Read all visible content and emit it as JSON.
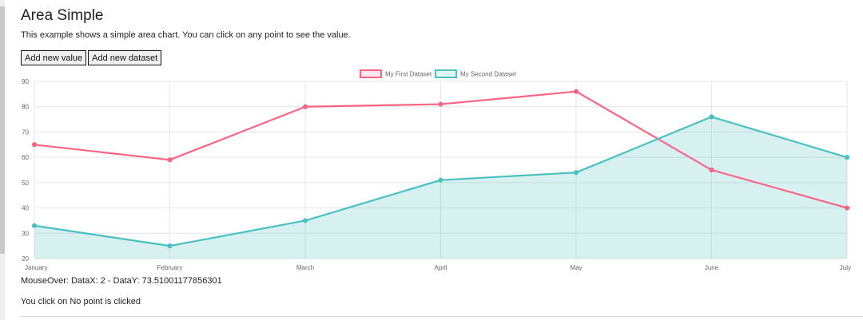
{
  "page": {
    "title": "Area Simple",
    "description": "This example shows a simple area chart. You can click on any point to see the value."
  },
  "buttons": {
    "add_value": "Add new value",
    "add_dataset": "Add new dataset"
  },
  "chart_data": {
    "type": "area",
    "categories": [
      "January",
      "February",
      "March",
      "April",
      "May",
      "June",
      "July"
    ],
    "series": [
      {
        "name": "My First Dataset",
        "values": [
          65,
          59,
          80,
          81,
          86,
          55,
          40
        ],
        "color": "#ff6384",
        "fill": false
      },
      {
        "name": "My Second Dataset",
        "values": [
          33,
          25,
          35,
          51,
          54,
          76,
          60
        ],
        "color": "#4bc0c0",
        "fill": true,
        "fill_color": "rgba(75,192,192,0.22)"
      }
    ],
    "yticks": [
      20,
      30,
      40,
      50,
      60,
      70,
      80,
      90
    ],
    "ylim": [
      20,
      90
    ],
    "grid": true,
    "legend_position": "top-center"
  },
  "status": {
    "mouseover": "MouseOver: DataX: 2 - DataY: 73.51001177856301",
    "click": "You click on No point is clicked"
  }
}
